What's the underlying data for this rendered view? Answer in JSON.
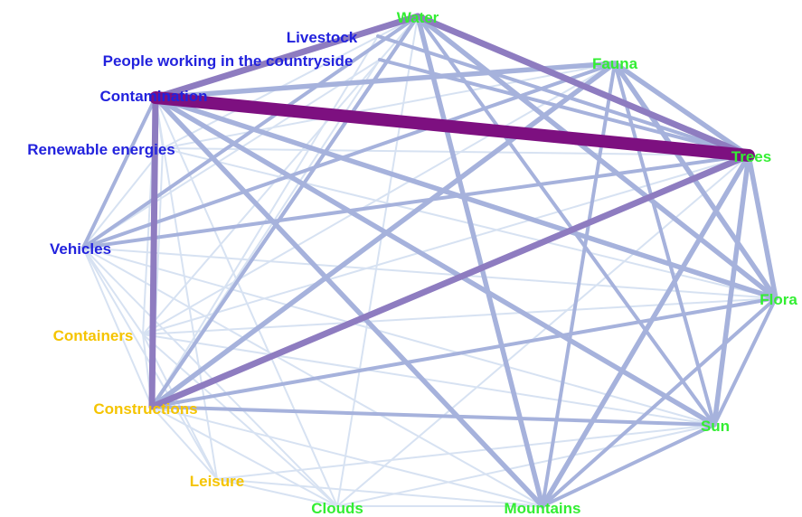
{
  "colors": {
    "nature": "#33ee33",
    "human": "#2222dd",
    "built": "#f5c400",
    "edge_strong": "#7d1080",
    "edge_medium": "#8e7cc0",
    "edge_weak": "#a6b2dc",
    "edge_faint": "#d7e2f2"
  },
  "nodes": [
    {
      "id": "water",
      "label": "Water",
      "group": "nature"
    },
    {
      "id": "livestock",
      "label": "Livestock",
      "group": "human"
    },
    {
      "id": "people",
      "label": "People working in the countryside",
      "group": "human"
    },
    {
      "id": "fauna",
      "label": "Fauna",
      "group": "nature"
    },
    {
      "id": "contamination",
      "label": "Contamination",
      "group": "human"
    },
    {
      "id": "renewable",
      "label": "Renewable energies",
      "group": "human"
    },
    {
      "id": "trees",
      "label": "Trees",
      "group": "nature"
    },
    {
      "id": "vehicles",
      "label": "Vehicles",
      "group": "human"
    },
    {
      "id": "flora",
      "label": "Flora",
      "group": "nature"
    },
    {
      "id": "containers",
      "label": "Containers",
      "group": "built"
    },
    {
      "id": "constructions",
      "label": "Constructions",
      "group": "built"
    },
    {
      "id": "sun",
      "label": "Sun",
      "group": "nature"
    },
    {
      "id": "leisure",
      "label": "Leisure",
      "group": "built"
    },
    {
      "id": "clouds",
      "label": "Clouds",
      "group": "nature"
    },
    {
      "id": "mountains",
      "label": "Mountains",
      "group": "nature"
    }
  ],
  "edges": [
    [
      "contamination",
      "trees",
      5
    ],
    [
      "contamination",
      "water",
      4
    ],
    [
      "contamination",
      "constructions",
      4
    ],
    [
      "water",
      "trees",
      4
    ],
    [
      "trees",
      "constructions",
      4
    ],
    [
      "contamination",
      "fauna",
      3
    ],
    [
      "fauna",
      "trees",
      3
    ],
    [
      "contamination",
      "flora",
      3
    ],
    [
      "contamination",
      "sun",
      3
    ],
    [
      "contamination",
      "mountains",
      3
    ],
    [
      "water",
      "flora",
      3
    ],
    [
      "water",
      "mountains",
      3
    ],
    [
      "fauna",
      "flora",
      3
    ],
    [
      "fauna",
      "constructions",
      3
    ],
    [
      "trees",
      "flora",
      3
    ],
    [
      "trees",
      "sun",
      3
    ],
    [
      "trees",
      "mountains",
      3
    ],
    [
      "trees",
      "vehicles",
      2
    ],
    [
      "water",
      "vehicles",
      2
    ],
    [
      "water",
      "sun",
      2
    ],
    [
      "water",
      "constructions",
      2
    ],
    [
      "fauna",
      "sun",
      2
    ],
    [
      "fauna",
      "mountains",
      2
    ],
    [
      "flora",
      "sun",
      2
    ],
    [
      "flora",
      "constructions",
      2
    ],
    [
      "constructions",
      "sun",
      2
    ],
    [
      "contamination",
      "vehicles",
      2
    ],
    [
      "fauna",
      "vehicles",
      2
    ],
    [
      "trees",
      "people",
      2
    ],
    [
      "trees",
      "livestock",
      2
    ],
    [
      "sun",
      "mountains",
      2
    ],
    [
      "mountains",
      "flora",
      2
    ],
    [
      "constructions",
      "water",
      2
    ],
    [
      "contamination",
      "renewable",
      1
    ],
    [
      "contamination",
      "containers",
      1
    ],
    [
      "contamination",
      "leisure",
      1
    ],
    [
      "contamination",
      "clouds",
      1
    ],
    [
      "water",
      "renewable",
      1
    ],
    [
      "water",
      "containers",
      1
    ],
    [
      "water",
      "clouds",
      1
    ],
    [
      "fauna",
      "renewable",
      1
    ],
    [
      "fauna",
      "containers",
      1
    ],
    [
      "trees",
      "containers",
      1
    ],
    [
      "trees",
      "renewable",
      1
    ],
    [
      "trees",
      "clouds",
      1
    ],
    [
      "flora",
      "vehicles",
      1
    ],
    [
      "flora",
      "containers",
      1
    ],
    [
      "flora",
      "renewable",
      1
    ],
    [
      "sun",
      "vehicles",
      1
    ],
    [
      "sun",
      "containers",
      1
    ],
    [
      "sun",
      "leisure",
      1
    ],
    [
      "sun",
      "clouds",
      1
    ],
    [
      "mountains",
      "vehicles",
      1
    ],
    [
      "mountains",
      "constructions",
      1
    ],
    [
      "mountains",
      "clouds",
      1
    ],
    [
      "mountains",
      "leisure",
      1
    ],
    [
      "vehicles",
      "constructions",
      1
    ],
    [
      "vehicles",
      "containers",
      1
    ],
    [
      "vehicles",
      "clouds",
      1
    ],
    [
      "vehicles",
      "leisure",
      1
    ],
    [
      "vehicles",
      "people",
      1
    ],
    [
      "constructions",
      "clouds",
      1
    ],
    [
      "constructions",
      "leisure",
      1
    ],
    [
      "constructions",
      "containers",
      1
    ],
    [
      "containers",
      "clouds",
      1
    ],
    [
      "containers",
      "leisure",
      1
    ],
    [
      "renewable",
      "constructions",
      1
    ],
    [
      "renewable",
      "vehicles",
      1
    ],
    [
      "livestock",
      "constructions",
      1
    ],
    [
      "people",
      "constructions",
      1
    ],
    [
      "clouds",
      "leisure",
      1
    ]
  ]
}
